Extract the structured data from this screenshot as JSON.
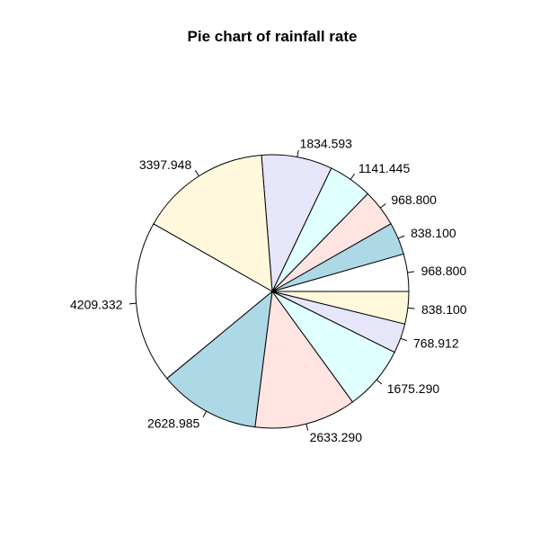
{
  "chart_data": {
    "type": "pie",
    "title": "Pie chart of rainfall rate",
    "values": [
      968.8,
      838.1,
      968.8,
      1141.445,
      1834.593,
      3397.948,
      4209.332,
      2628.985,
      2633.29,
      1675.29,
      768.912,
      838.1
    ],
    "labels": [
      "968.800",
      "838.100",
      "968.800",
      "1141.445",
      "1834.593",
      "3397.948",
      "4209.332",
      "2628.985",
      "2633.290",
      "1675.290",
      "768.912",
      "838.100"
    ],
    "colors": [
      "#FFFFFF",
      "#ADD8E6",
      "#FFE4E1",
      "#E0FFFF",
      "#E6E6FA",
      "#FFF8DC",
      "#FFFFFF",
      "#ADD8E6",
      "#FFE4E1",
      "#E0FFFF",
      "#E6E6FA",
      "#FFF8DC"
    ],
    "direction": "counterclockwise",
    "start": "3 o'clock"
  }
}
